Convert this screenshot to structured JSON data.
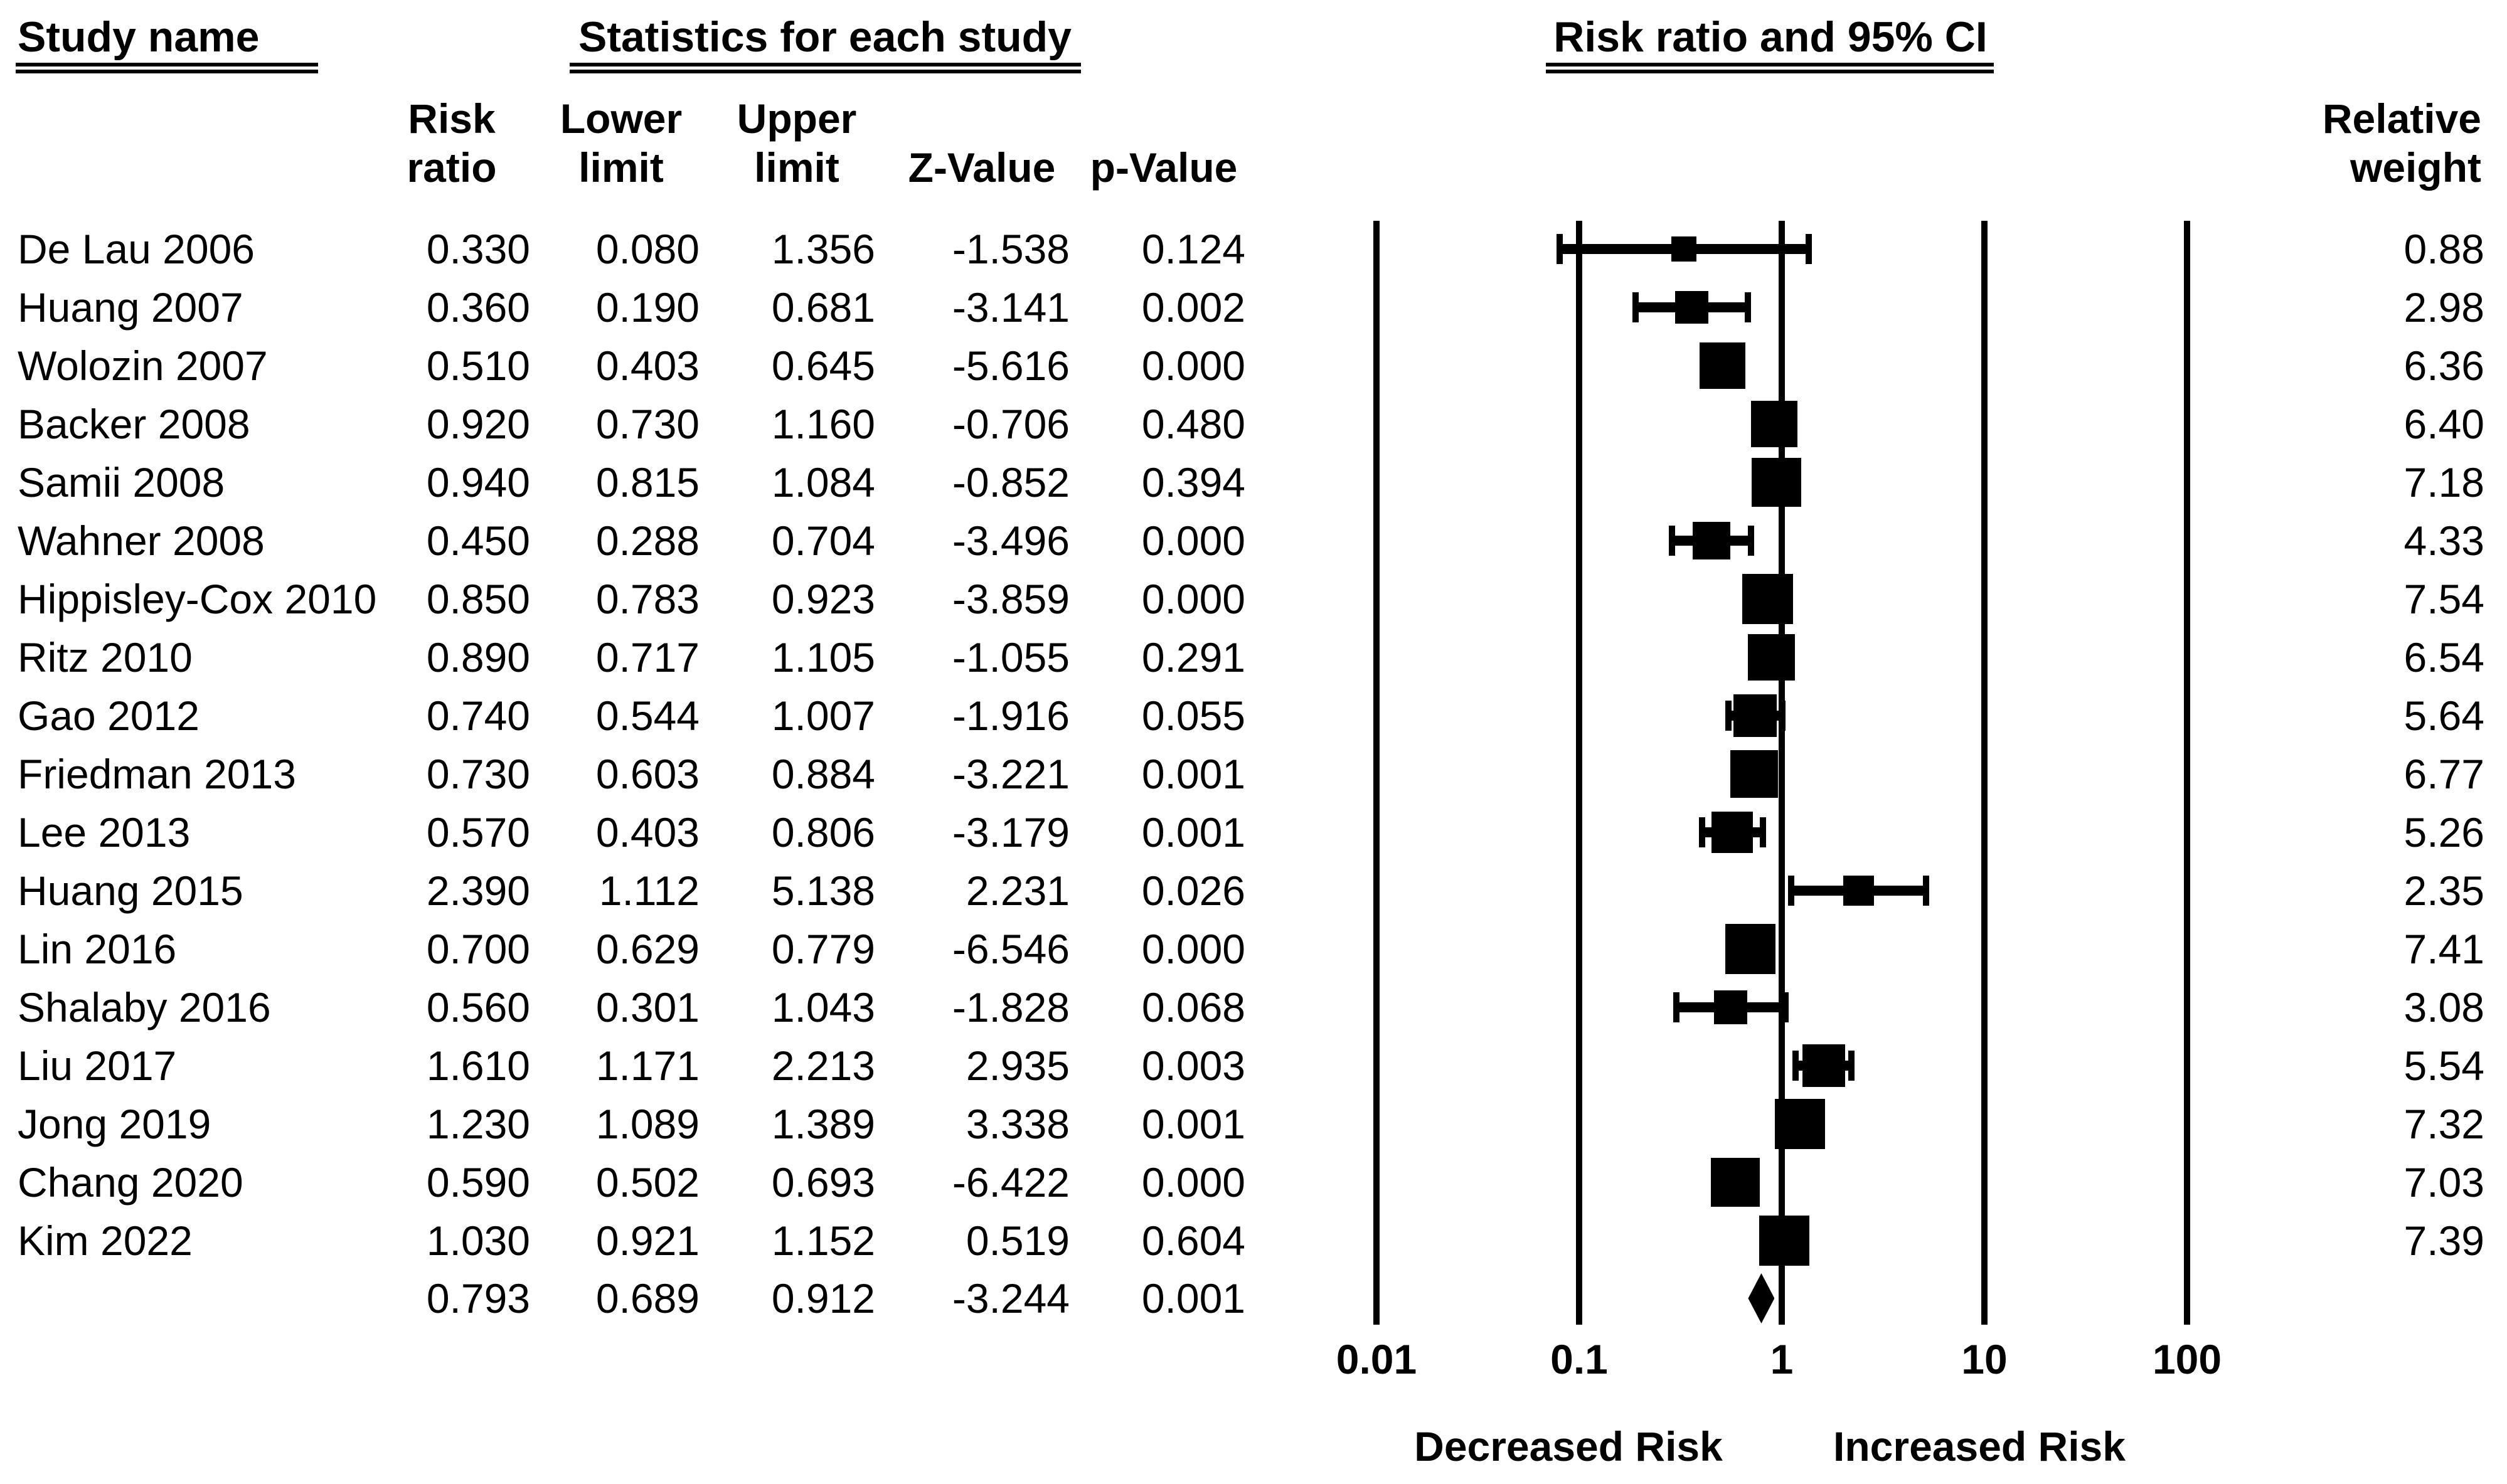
{
  "header": {
    "study_name": "Study name",
    "stats": "Statistics for each study",
    "plot": "Risk ratio and 95% CI",
    "relative_weight_line1": "Relative",
    "relative_weight_line2": "weight",
    "col_risk_line1": "Risk",
    "col_risk_line2": "ratio",
    "col_lower_line1": "Lower",
    "col_lower_line2": "limit",
    "col_upper_line1": "Upper",
    "col_upper_line2": "limit",
    "col_z": "Z-Value",
    "col_p": "p-Value"
  },
  "colors": {
    "ink": "#000000",
    "background": "#ffffff"
  },
  "chart_data": {
    "type": "forest",
    "x_scale": "log10",
    "xlim": [
      0.01,
      100
    ],
    "axis_ticks": [
      0.01,
      0.1,
      1,
      10,
      100
    ],
    "axis_tick_labels": [
      "0.01",
      "0.1",
      "1",
      "10",
      "100"
    ],
    "xlabel_left": "Decreased Risk",
    "xlabel_right": "Increased Risk",
    "studies": [
      {
        "name": "De Lau 2006",
        "rr": "0.330",
        "lo": "0.080",
        "hi": "1.356",
        "z": "-1.538",
        "p": "0.124",
        "weight": "0.88"
      },
      {
        "name": "Huang 2007",
        "rr": "0.360",
        "lo": "0.190",
        "hi": "0.681",
        "z": "-3.141",
        "p": "0.002",
        "weight": "2.98"
      },
      {
        "name": "Wolozin 2007",
        "rr": "0.510",
        "lo": "0.403",
        "hi": "0.645",
        "z": "-5.616",
        "p": "0.000",
        "weight": "6.36"
      },
      {
        "name": "Backer 2008",
        "rr": "0.920",
        "lo": "0.730",
        "hi": "1.160",
        "z": "-0.706",
        "p": "0.480",
        "weight": "6.40"
      },
      {
        "name": "Samii 2008",
        "rr": "0.940",
        "lo": "0.815",
        "hi": "1.084",
        "z": "-0.852",
        "p": "0.394",
        "weight": "7.18"
      },
      {
        "name": "Wahner 2008",
        "rr": "0.450",
        "lo": "0.288",
        "hi": "0.704",
        "z": "-3.496",
        "p": "0.000",
        "weight": "4.33"
      },
      {
        "name": "Hippisley-Cox 2010",
        "rr": "0.850",
        "lo": "0.783",
        "hi": "0.923",
        "z": "-3.859",
        "p": "0.000",
        "weight": "7.54"
      },
      {
        "name": "Ritz 2010",
        "rr": "0.890",
        "lo": "0.717",
        "hi": "1.105",
        "z": "-1.055",
        "p": "0.291",
        "weight": "6.54"
      },
      {
        "name": "Gao 2012",
        "rr": "0.740",
        "lo": "0.544",
        "hi": "1.007",
        "z": "-1.916",
        "p": "0.055",
        "weight": "5.64"
      },
      {
        "name": "Friedman 2013",
        "rr": "0.730",
        "lo": "0.603",
        "hi": "0.884",
        "z": "-3.221",
        "p": "0.001",
        "weight": "6.77"
      },
      {
        "name": "Lee 2013",
        "rr": "0.570",
        "lo": "0.403",
        "hi": "0.806",
        "z": "-3.179",
        "p": "0.001",
        "weight": "5.26"
      },
      {
        "name": "Huang 2015",
        "rr": "2.390",
        "lo": "1.112",
        "hi": "5.138",
        "z": "2.231",
        "p": "0.026",
        "weight": "2.35"
      },
      {
        "name": "Lin 2016",
        "rr": "0.700",
        "lo": "0.629",
        "hi": "0.779",
        "z": "-6.546",
        "p": "0.000",
        "weight": "7.41"
      },
      {
        "name": "Shalaby 2016",
        "rr": "0.560",
        "lo": "0.301",
        "hi": "1.043",
        "z": "-1.828",
        "p": "0.068",
        "weight": "3.08"
      },
      {
        "name": "Liu 2017",
        "rr": "1.610",
        "lo": "1.171",
        "hi": "2.213",
        "z": "2.935",
        "p": "0.003",
        "weight": "5.54"
      },
      {
        "name": "Jong 2019",
        "rr": "1.230",
        "lo": "1.089",
        "hi": "1.389",
        "z": "3.338",
        "p": "0.001",
        "weight": "7.32"
      },
      {
        "name": "Chang 2020",
        "rr": "0.590",
        "lo": "0.502",
        "hi": "0.693",
        "z": "-6.422",
        "p": "0.000",
        "weight": "7.03"
      },
      {
        "name": "Kim 2022",
        "rr": "1.030",
        "lo": "0.921",
        "hi": "1.152",
        "z": "0.519",
        "p": "0.604",
        "weight": "7.39"
      }
    ],
    "overall": {
      "rr": "0.793",
      "lo": "0.689",
      "hi": "0.912",
      "z": "-3.244",
      "p": "0.001"
    }
  }
}
